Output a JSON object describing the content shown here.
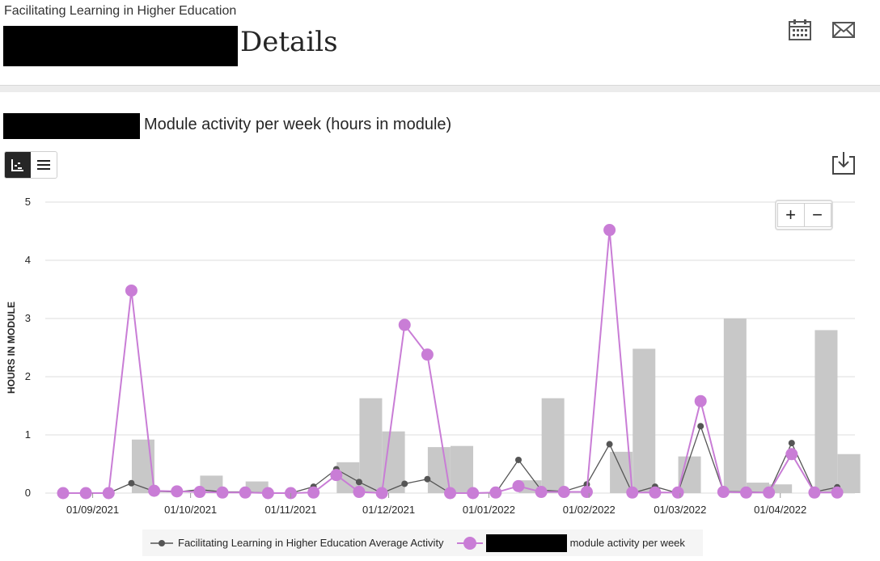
{
  "header": {
    "course_name": "Facilitating Learning in Higher Education",
    "title": "Details",
    "icons": [
      "calendar-icon",
      "mail-icon"
    ]
  },
  "section": {
    "title": "Module activity per week (hours in module)",
    "view_toggle": [
      "chart-view-icon",
      "table-view-icon"
    ],
    "download_icon": "download-icon",
    "zoom_in": "+",
    "zoom_out": "−"
  },
  "chart_data": {
    "type": "bar",
    "ylabel": "HOURS IN MODULE",
    "ylim": [
      0,
      5
    ],
    "yticks": [
      0,
      1,
      2,
      3,
      4,
      5
    ],
    "xtick_labels": [
      "01/09/2021",
      "01/10/2021",
      "01/11/2021",
      "01/12/2021",
      "01/01/2022",
      "01/02/2022",
      "01/03/2022",
      "01/04/2022"
    ],
    "week_count": 35,
    "xtick_weeks": [
      1.3,
      5.6,
      10,
      14.3,
      18.7,
      23.1,
      27.1,
      31.5
    ],
    "grid": true,
    "legend_position": "bottom",
    "bars": [
      0,
      0,
      0,
      0.92,
      0,
      0,
      0.3,
      0,
      0.2,
      0,
      0,
      0,
      0.53,
      1.63,
      1.06,
      0,
      0.79,
      0.81,
      0,
      0,
      0.22,
      1.63,
      0,
      0,
      0.71,
      2.48,
      0,
      0.63,
      0,
      3.0,
      0.18,
      0.15,
      0,
      2.8,
      0.67
    ],
    "series": [
      {
        "name": "Facilitating Learning in Higher Education Average Activity",
        "color": "#555555",
        "values": [
          0,
          0,
          0,
          0.17,
          0.03,
          0.02,
          0.06,
          0.02,
          0.02,
          0,
          0,
          0.11,
          0.41,
          0.19,
          0,
          0.16,
          0.24,
          0,
          0,
          0,
          0.57,
          0.05,
          0.03,
          0.15,
          0.84,
          0,
          0.11,
          0,
          1.15,
          0.03,
          0.02,
          0.01,
          0.86,
          0.02,
          0.1
        ]
      },
      {
        "name": "module activity per week",
        "color": "#c97dd6",
        "values": [
          0,
          0,
          0,
          3.48,
          0.04,
          0.03,
          0.02,
          0.01,
          0.01,
          0,
          0,
          0.01,
          0.31,
          0.02,
          0,
          2.89,
          2.38,
          0,
          0,
          0.01,
          0.12,
          0.02,
          0.02,
          0.02,
          4.52,
          0.01,
          0.01,
          0.01,
          1.58,
          0.02,
          0.01,
          0.01,
          0.67,
          0.01,
          0.01
        ]
      }
    ]
  }
}
